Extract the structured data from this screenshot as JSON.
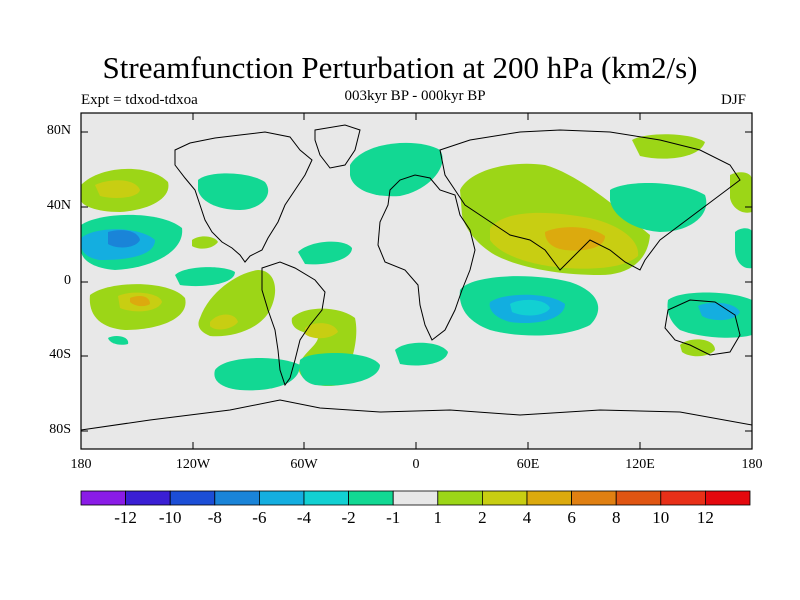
{
  "title": "Streamfunction Perturbation at 200 hPa (km2/s)",
  "subtitle_left": "Expt = tdxod-tdxoa",
  "subtitle_center": "003kyr BP - 000kyr BP",
  "subtitle_right": "DJF",
  "axes": {
    "lat_ticks": [
      "80N",
      "40N",
      "0",
      "40S",
      "80S"
    ],
    "lon_ticks": [
      "180",
      "120W",
      "60W",
      "0",
      "60E",
      "120E",
      "180"
    ]
  },
  "colorbar": {
    "labels": [
      "-12",
      "-10",
      "-8",
      "-6",
      "-4",
      "-2",
      "-1",
      "1",
      "2",
      "4",
      "6",
      "8",
      "10",
      "12"
    ],
    "colors": [
      "#8a1ce6",
      "#3a1fd4",
      "#1c4ed6",
      "#1a84d8",
      "#14aee0",
      "#12d0d2",
      "#12d893",
      "#e8e8e8",
      "#9cd617",
      "#c8ce12",
      "#dcaa0e",
      "#e08012",
      "#e05512",
      "#e83018",
      "#e4080e"
    ]
  },
  "colors": {
    "background": "#e8e8e8",
    "coast": "#000000"
  }
}
